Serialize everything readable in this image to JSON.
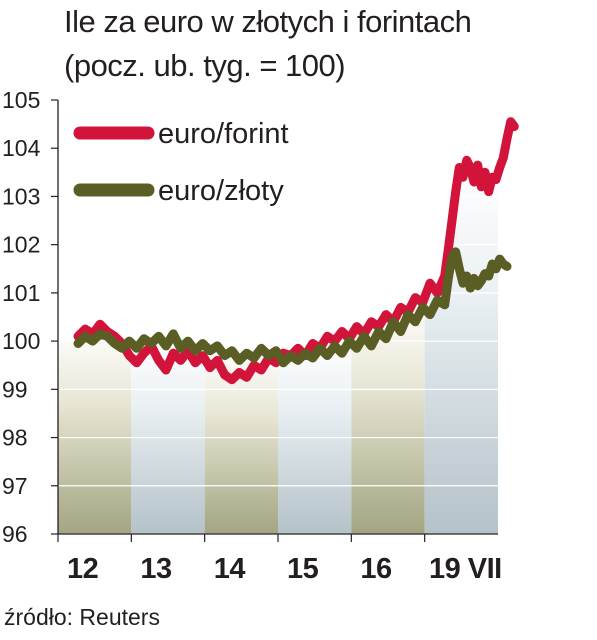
{
  "chart_data": {
    "type": "line",
    "title": "Ile za euro w złotych i forintach",
    "subtitle": "(pocz. ub. tyg. = 100)",
    "source": "źródło: Reuters",
    "ylim": [
      96,
      105
    ],
    "yticks": [
      "96",
      "97",
      "98",
      "99",
      "100",
      "101",
      "102",
      "103",
      "104",
      "105"
    ],
    "categories": [
      "12",
      "13",
      "14",
      "15",
      "16",
      "19 VII"
    ],
    "legend_position": "top-left",
    "series": [
      {
        "name": "euro/forint",
        "color": "#d2143a",
        "points": [
          [
            0.0,
            100.1
          ],
          [
            0.1,
            100.25
          ],
          [
            0.2,
            100.15
          ],
          [
            0.3,
            100.35
          ],
          [
            0.4,
            100.2
          ],
          [
            0.5,
            100.1
          ],
          [
            0.6,
            99.95
          ],
          [
            0.7,
            99.7
          ],
          [
            0.8,
            99.55
          ],
          [
            0.9,
            99.75
          ],
          [
            1.0,
            99.9
          ],
          [
            1.1,
            99.6
          ],
          [
            1.2,
            99.4
          ],
          [
            1.3,
            99.75
          ],
          [
            1.4,
            99.6
          ],
          [
            1.5,
            99.8
          ],
          [
            1.6,
            99.55
          ],
          [
            1.7,
            99.7
          ],
          [
            1.8,
            99.45
          ],
          [
            1.9,
            99.6
          ],
          [
            2.0,
            99.3
          ],
          [
            2.1,
            99.2
          ],
          [
            2.2,
            99.35
          ],
          [
            2.3,
            99.25
          ],
          [
            2.4,
            99.5
          ],
          [
            2.5,
            99.4
          ],
          [
            2.6,
            99.65
          ],
          [
            2.7,
            99.55
          ],
          [
            2.8,
            99.75
          ],
          [
            2.9,
            99.7
          ],
          [
            3.0,
            99.85
          ],
          [
            3.1,
            99.7
          ],
          [
            3.2,
            99.95
          ],
          [
            3.3,
            99.85
          ],
          [
            3.4,
            100.1
          ],
          [
            3.5,
            100.0
          ],
          [
            3.6,
            100.2
          ],
          [
            3.7,
            100.05
          ],
          [
            3.8,
            100.3
          ],
          [
            3.9,
            100.15
          ],
          [
            4.0,
            100.4
          ],
          [
            4.1,
            100.3
          ],
          [
            4.2,
            100.55
          ],
          [
            4.3,
            100.4
          ],
          [
            4.4,
            100.7
          ],
          [
            4.5,
            100.6
          ],
          [
            4.6,
            100.9
          ],
          [
            4.7,
            100.8
          ],
          [
            4.8,
            101.2
          ],
          [
            4.9,
            101.0
          ],
          [
            5.0,
            101.35
          ],
          [
            5.05,
            101.9
          ],
          [
            5.1,
            102.5
          ],
          [
            5.15,
            103.1
          ],
          [
            5.2,
            103.6
          ],
          [
            5.25,
            103.4
          ],
          [
            5.3,
            103.75
          ],
          [
            5.35,
            103.6
          ],
          [
            5.4,
            103.3
          ],
          [
            5.45,
            103.65
          ],
          [
            5.5,
            103.2
          ],
          [
            5.55,
            103.5
          ],
          [
            5.6,
            103.1
          ],
          [
            5.65,
            103.4
          ],
          [
            5.7,
            103.35
          ],
          [
            5.75,
            103.6
          ],
          [
            5.8,
            103.8
          ],
          [
            5.85,
            104.2
          ],
          [
            5.9,
            104.55
          ],
          [
            5.95,
            104.45
          ]
        ]
      },
      {
        "name": "euro/złoty",
        "color": "#5a5d24",
        "points": [
          [
            0.0,
            99.95
          ],
          [
            0.1,
            100.1
          ],
          [
            0.2,
            100.0
          ],
          [
            0.3,
            100.15
          ],
          [
            0.4,
            100.1
          ],
          [
            0.5,
            99.95
          ],
          [
            0.6,
            99.85
          ],
          [
            0.7,
            100.0
          ],
          [
            0.8,
            99.85
          ],
          [
            0.9,
            100.05
          ],
          [
            1.0,
            99.95
          ],
          [
            1.1,
            100.1
          ],
          [
            1.2,
            99.9
          ],
          [
            1.3,
            100.15
          ],
          [
            1.4,
            99.85
          ],
          [
            1.5,
            100.0
          ],
          [
            1.6,
            99.8
          ],
          [
            1.7,
            99.95
          ],
          [
            1.8,
            99.8
          ],
          [
            1.9,
            99.9
          ],
          [
            2.0,
            99.7
          ],
          [
            2.1,
            99.8
          ],
          [
            2.2,
            99.6
          ],
          [
            2.3,
            99.75
          ],
          [
            2.4,
            99.65
          ],
          [
            2.5,
            99.85
          ],
          [
            2.6,
            99.7
          ],
          [
            2.7,
            99.8
          ],
          [
            2.8,
            99.55
          ],
          [
            2.9,
            99.7
          ],
          [
            3.0,
            99.6
          ],
          [
            3.1,
            99.75
          ],
          [
            3.2,
            99.65
          ],
          [
            3.3,
            99.85
          ],
          [
            3.4,
            99.7
          ],
          [
            3.5,
            99.9
          ],
          [
            3.6,
            99.75
          ],
          [
            3.7,
            100.0
          ],
          [
            3.8,
            99.85
          ],
          [
            3.9,
            100.1
          ],
          [
            4.0,
            99.9
          ],
          [
            4.1,
            100.2
          ],
          [
            4.2,
            100.05
          ],
          [
            4.3,
            100.4
          ],
          [
            4.4,
            100.2
          ],
          [
            4.5,
            100.55
          ],
          [
            4.6,
            100.4
          ],
          [
            4.7,
            100.7
          ],
          [
            4.8,
            100.55
          ],
          [
            4.9,
            100.85
          ],
          [
            5.0,
            100.75
          ],
          [
            5.05,
            101.3
          ],
          [
            5.1,
            101.75
          ],
          [
            5.15,
            101.85
          ],
          [
            5.2,
            101.5
          ],
          [
            5.25,
            101.2
          ],
          [
            5.3,
            101.35
          ],
          [
            5.35,
            101.1
          ],
          [
            5.4,
            101.3
          ],
          [
            5.45,
            101.15
          ],
          [
            5.5,
            101.25
          ],
          [
            5.55,
            101.4
          ],
          [
            5.6,
            101.35
          ],
          [
            5.65,
            101.6
          ],
          [
            5.7,
            101.5
          ],
          [
            5.75,
            101.7
          ],
          [
            5.8,
            101.6
          ],
          [
            5.85,
            101.55
          ]
        ]
      }
    ]
  }
}
